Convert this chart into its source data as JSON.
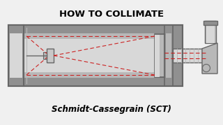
{
  "title_top": "HOW TO COLLIMATE",
  "title_bottom": "Schmidt-Cassegrain (SCT)",
  "bg_color": "#f0f0f0",
  "dashed_color": "#cc2222",
  "text_color": "#000000",
  "tube_gray_outer": "#909090",
  "tube_gray_mid": "#b8b8b8",
  "tube_gray_light": "#d8d8d8",
  "tube_gray_dark": "#666666",
  "tube_gray_rim": "#787878"
}
